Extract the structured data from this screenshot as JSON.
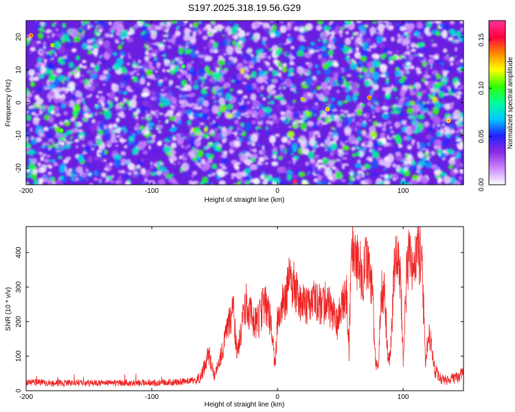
{
  "figure_title": "S197.2025.318.19.56.G29",
  "colors": {
    "snr_line": "#ee2222",
    "heatmap_bg": "#6a1fe0",
    "colorbar_stops": [
      "#ffffff",
      "#cc88ff",
      "#8a2be2",
      "#2222ff",
      "#00c8ff",
      "#00ff99",
      "#33ff00",
      "#ffff00",
      "#ff8800",
      "#ff0044",
      "#ff3399"
    ]
  },
  "chart_data": [
    {
      "type": "heatmap",
      "title": "S197.2025.318.19.56.G29",
      "xlabel": "Height of straight line (km)",
      "ylabel": "Frequency (Hz)",
      "xlim": [
        -200,
        148
      ],
      "ylim": [
        -25,
        25
      ],
      "xticks": [
        -200,
        -100,
        0,
        100
      ],
      "yticks": [
        -20,
        -10,
        0,
        10,
        20
      ],
      "colorbar": {
        "label": "Normalized spectral amplitude",
        "range": [
          0,
          0.17
        ],
        "ticks": [
          0.0,
          0.05,
          0.1,
          0.15
        ],
        "tick_labels": [
          "0.00",
          "0.05",
          "0.10",
          "0.15"
        ]
      },
      "notable_peaks": [
        {
          "x": -196,
          "y": 20.5,
          "value": 0.13
        },
        {
          "x": -179,
          "y": 17.5,
          "value": 0.11
        },
        {
          "x": -172,
          "y": -8.5,
          "value": 0.1
        },
        {
          "x": -75,
          "y": 11,
          "value": 0.09
        },
        {
          "x": 14,
          "y": -24,
          "value": 0.16
        },
        {
          "x": 20,
          "y": 1,
          "value": 0.11
        },
        {
          "x": 40,
          "y": -2,
          "value": 0.12
        },
        {
          "x": 73,
          "y": 1.5,
          "value": 0.13
        },
        {
          "x": 136,
          "y": -5.5,
          "value": 0.12
        }
      ]
    },
    {
      "type": "line",
      "xlabel": "Height of straight line (km)",
      "ylabel": "SNR (10 * v/v)",
      "xlim": [
        -200,
        148
      ],
      "ylim": [
        0,
        475
      ],
      "xticks": [
        -200,
        -100,
        0,
        100
      ],
      "yticks": [
        0,
        100,
        200,
        300,
        400
      ],
      "series": [
        {
          "name": "SNR",
          "x": [
            -200,
            -180,
            -160,
            -140,
            -120,
            -100,
            -80,
            -70,
            -62,
            -58,
            -55,
            -50,
            -45,
            -40,
            -35,
            -32,
            -28,
            -25,
            -20,
            -15,
            -10,
            -5,
            -2,
            0,
            5,
            10,
            15,
            20,
            25,
            30,
            35,
            40,
            45,
            48,
            50,
            55,
            57,
            58,
            60,
            62,
            65,
            68,
            70,
            72,
            75,
            78,
            80,
            83,
            85,
            88,
            90,
            93,
            95,
            98,
            100,
            103,
            105,
            108,
            110,
            113,
            115,
            118,
            120,
            123,
            125,
            130,
            135,
            140,
            145,
            148
          ],
          "y": [
            25,
            22,
            22,
            22,
            23,
            23,
            25,
            28,
            35,
            70,
            110,
            40,
            100,
            180,
            230,
            100,
            200,
            250,
            210,
            200,
            260,
            200,
            70,
            200,
            260,
            320,
            290,
            250,
            240,
            260,
            250,
            255,
            220,
            180,
            240,
            270,
            110,
            300,
            430,
            380,
            370,
            330,
            380,
            350,
            320,
            80,
            70,
            280,
            300,
            80,
            110,
            360,
            370,
            330,
            80,
            350,
            400,
            320,
            380,
            400,
            360,
            70,
            180,
            120,
            60,
            35,
            30,
            35,
            40,
            60
          ]
        }
      ]
    }
  ]
}
